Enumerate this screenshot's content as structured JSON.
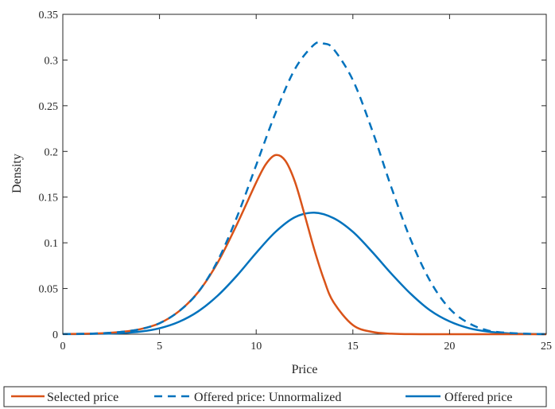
{
  "chart_data": {
    "type": "line",
    "xlabel": "Price",
    "ylabel": "Density",
    "xlim": [
      0,
      25
    ],
    "ylim": [
      0,
      0.35
    ],
    "x_ticks": [
      "0",
      "5",
      "10",
      "15",
      "20",
      "25"
    ],
    "y_ticks": [
      "0",
      "0.05",
      "0.1",
      "0.15",
      "0.2",
      "0.25",
      "0.3",
      "0.35"
    ],
    "grid": false,
    "legend_position": "bottom-outside",
    "series": [
      {
        "name": "Selected price",
        "color": "#D95319",
        "style": "solid",
        "x": [
          0,
          1,
          2,
          3,
          4,
          5,
          6,
          7,
          8,
          9,
          10,
          10.5,
          11,
          11.5,
          12,
          12.5,
          13,
          13.5,
          14,
          15,
          16,
          17,
          18,
          19,
          20,
          22,
          25
        ],
        "y": [
          0.0002,
          0.0004,
          0.001,
          0.0025,
          0.0055,
          0.012,
          0.025,
          0.046,
          0.078,
          0.12,
          0.166,
          0.186,
          0.196,
          0.19,
          0.167,
          0.131,
          0.093,
          0.06,
          0.035,
          0.01,
          0.0025,
          0.0005,
          0.0001,
          0,
          0,
          0,
          0
        ]
      },
      {
        "name": "Offered price: Unnormalized",
        "color": "#0072BD",
        "style": "dashed",
        "x": [
          0,
          1,
          2,
          3,
          4,
          5,
          6,
          7,
          8,
          9,
          10,
          11,
          12,
          13,
          13.5,
          14,
          15,
          16,
          17,
          18,
          19,
          20,
          21,
          22,
          23,
          24,
          25
        ],
        "y": [
          0.0002,
          0.0004,
          0.001,
          0.0025,
          0.0055,
          0.012,
          0.025,
          0.046,
          0.08,
          0.128,
          0.185,
          0.242,
          0.29,
          0.317,
          0.318,
          0.312,
          0.278,
          0.223,
          0.16,
          0.103,
          0.058,
          0.028,
          0.012,
          0.004,
          0.0015,
          0.0005,
          0.0001
        ]
      },
      {
        "name": "Offered price",
        "color": "#0072BD",
        "style": "solid",
        "x": [
          0,
          1,
          2,
          3,
          4,
          5,
          6,
          7,
          8,
          9,
          10,
          11,
          12,
          13,
          14,
          15,
          16,
          17,
          18,
          19,
          20,
          21,
          22,
          23,
          24,
          25
        ],
        "y": [
          0.0001,
          0.0002,
          0.0005,
          0.0012,
          0.0028,
          0.0065,
          0.0135,
          0.025,
          0.042,
          0.064,
          0.089,
          0.112,
          0.128,
          0.133,
          0.127,
          0.112,
          0.09,
          0.066,
          0.044,
          0.026,
          0.014,
          0.0066,
          0.0028,
          0.001,
          0.0003,
          0.0001
        ]
      }
    ]
  }
}
